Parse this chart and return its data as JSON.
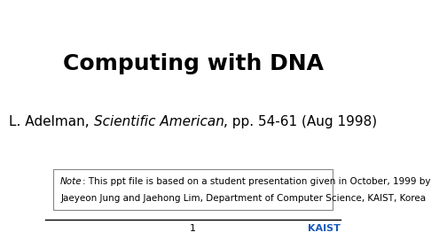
{
  "title": "Computing with DNA",
  "subtitle_normal1": "L. Adelman, ",
  "subtitle_italic": "Scientific American",
  "subtitle_normal2": ", pp. 54-61 (Aug 1998)",
  "note_italic": "Note",
  "note_rest_line1": ": This ppt file is based on a student presentation given in October, 1999 by",
  "note_line2": "Jaeyeon Jung and Jaehong Lim, Department of Computer Science, KAIST, Korea",
  "page_number": "1",
  "kaist_text": "KAIST",
  "kaist_color": "#1a5ab8",
  "background_color": "#ffffff",
  "title_fontsize": 18,
  "subtitle_fontsize": 11,
  "note_fontsize": 7.5,
  "footer_fontsize": 8,
  "footer_line_color": "#000000",
  "box_border_color": "#888888"
}
